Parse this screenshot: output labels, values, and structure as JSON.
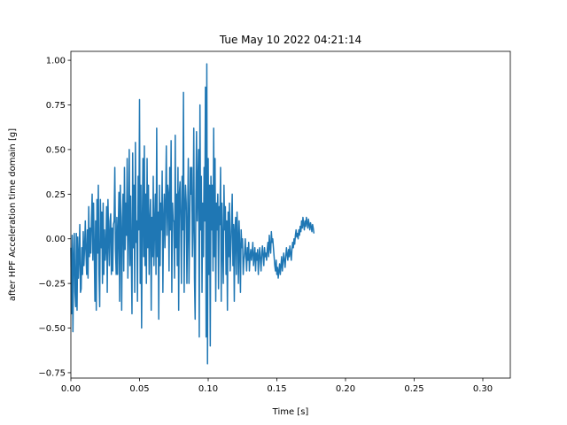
{
  "chart_data": {
    "type": "line",
    "title": "Tue May 10 2022 04:21:14",
    "xlabel": "Time [s]",
    "ylabel": "after HPF Acceleration time domain [g]",
    "xlim": [
      0.0,
      0.32
    ],
    "ylim": [
      -0.78,
      1.05
    ],
    "x_ticks": [
      0.0,
      0.05,
      0.1,
      0.15,
      0.2,
      0.25,
      0.3
    ],
    "x_tick_labels": [
      "0.00",
      "0.05",
      "0.10",
      "0.15",
      "0.20",
      "0.25",
      "0.30"
    ],
    "y_ticks": [
      -0.75,
      -0.5,
      -0.25,
      0.0,
      0.25,
      0.5,
      0.75,
      1.0
    ],
    "y_tick_labels": [
      "−0.75",
      "−0.50",
      "−0.25",
      "0.00",
      "0.25",
      "0.50",
      "0.75",
      "1.00"
    ],
    "grid": false,
    "line_color": "#1f77b4",
    "series": [
      {
        "sample_interval": 0.0005,
        "values": [
          -0.05,
          -0.42,
          0.02,
          -0.52,
          -0.1,
          0.03,
          -0.3,
          -0.38,
          0.03,
          -0.4,
          0.01,
          -0.22,
          -0.1,
          0.08,
          -0.3,
          -0.28,
          -0.05,
          -0.2,
          0.04,
          -0.15,
          -0.05,
          0.1,
          -0.08,
          -0.2,
          0.05,
          -0.22,
          0.18,
          -0.1,
          0.06,
          -0.08,
          0.12,
          0.25,
          -0.12,
          0.2,
          -0.05,
          -0.35,
          0.1,
          -0.4,
          0.22,
          -0.08,
          0.3,
          -0.2,
          -0.38,
          0.22,
          -0.05,
          0.15,
          -0.25,
          0.2,
          -0.2,
          0.05,
          -0.12,
          -0.05,
          0.18,
          -0.3,
          0.22,
          0.02,
          -0.15,
          0.1,
          0.14,
          -0.2,
          0.06,
          -0.18,
          0.08,
          0.1,
          0.4,
          -0.06,
          -0.2,
          0.12,
          -0.2,
          0.05,
          0.26,
          -0.35,
          0.3,
          0.05,
          -0.4,
          0.12,
          0.25,
          -0.18,
          0.4,
          -0.06,
          0.2,
          0.02,
          0.45,
          -0.22,
          0.04,
          0.5,
          -0.15,
          0.24,
          -0.1,
          -0.42,
          0.48,
          -0.05,
          0.3,
          -0.3,
          0.54,
          -0.02,
          0.1,
          -0.35,
          0.35,
          0.05,
          0.78,
          -0.25,
          0.3,
          -0.5,
          0.1,
          0.45,
          -0.1,
          0.52,
          -0.15,
          0.25,
          -0.25,
          0.45,
          -0.05,
          0.3,
          -0.2,
          0.1,
          0.22,
          -0.4,
          0.12,
          -0.1,
          0.35,
          -0.15,
          0.08,
          0.25,
          -0.2,
          0.62,
          -0.1,
          0.15,
          -0.45,
          0.3,
          -0.15,
          0.2,
          0.05,
          0.38,
          -0.3,
          0.1,
          0.25,
          -0.05,
          0.2,
          0.52,
          0.02,
          0.3,
          0.25,
          -0.18,
          0.4,
          0.05,
          0.55,
          -0.3,
          0.2,
          0.1,
          0.1,
          -0.22,
          0.58,
          -0.05,
          0.25,
          -0.15,
          0.4,
          -0.4,
          0.25,
          0.32,
          0.1,
          -0.25,
          0.35,
          0.05,
          0.82,
          -0.3,
          0.15,
          0.3,
          0.2,
          -0.25,
          0.08,
          0.45,
          -0.25,
          0.05,
          0.4,
          0.25,
          0.4,
          -0.1,
          0.1,
          0.62,
          -0.22,
          -0.45,
          0.18,
          0.6,
          0.1,
          0.3,
          0.5,
          -0.55,
          0.75,
          0.05,
          0.35,
          -0.3,
          0.2,
          -0.1,
          0.4,
          0.1,
          0.85,
          -0.55,
          0.98,
          -0.7,
          0.45,
          -0.2,
          0.3,
          -0.6,
          0.35,
          0.05,
          0.3,
          -0.18,
          0.62,
          -0.1,
          0.45,
          -0.35,
          0.2,
          0.05,
          0.25,
          -0.28,
          0.18,
          0.08,
          0.4,
          -0.35,
          0.2,
          -0.05,
          -0.25,
          0.3,
          0.05,
          0.18,
          -0.2,
          0.1,
          -0.4,
          0.15,
          -0.1,
          0.2,
          -0.18,
          -0.05,
          0.1,
          0.25,
          -0.15,
          0.08,
          -0.35,
          0.05,
          0.12,
          -0.2,
          0.15,
          0.02,
          -0.25,
          0.1,
          -0.05,
          -0.3,
          0.05,
          -0.05,
          0.0,
          -0.2,
          -0.12,
          -0.08,
          0.0,
          -0.1,
          -0.18,
          -0.05,
          -0.12,
          -0.02,
          -0.18,
          -0.1,
          -0.06,
          -0.12,
          -0.08,
          -0.02,
          -0.15,
          -0.1,
          -0.05,
          -0.18,
          -0.08,
          -0.12,
          -0.06,
          -0.2,
          -0.1,
          -0.05,
          -0.12,
          -0.18,
          -0.08,
          -0.04,
          -0.1,
          -0.15,
          -0.05,
          -0.1,
          -0.08,
          -0.12,
          -0.06,
          -0.02,
          -0.1,
          0.02,
          -0.05,
          -0.08,
          0.04,
          -0.02,
          0.0,
          -0.05,
          -0.1,
          -0.15,
          -0.18,
          -0.12,
          -0.2,
          -0.16,
          -0.22,
          -0.18,
          -0.14,
          -0.2,
          -0.15,
          -0.1,
          -0.18,
          -0.13,
          -0.08,
          -0.12,
          -0.16,
          -0.1,
          -0.05,
          -0.09,
          -0.12,
          -0.06,
          -0.1,
          -0.04,
          -0.08,
          -0.12,
          -0.06,
          -0.02,
          -0.05,
          0.0,
          -0.03,
          0.02,
          0.05,
          0.01,
          0.03,
          0.0,
          0.05,
          0.02,
          0.07,
          0.04,
          0.1,
          0.06,
          0.12,
          0.08,
          0.05,
          0.1,
          0.07,
          0.12,
          0.09,
          0.06,
          0.11,
          0.08,
          0.05,
          0.09,
          0.07,
          0.04,
          0.08,
          0.06,
          0.03
        ]
      }
    ]
  }
}
